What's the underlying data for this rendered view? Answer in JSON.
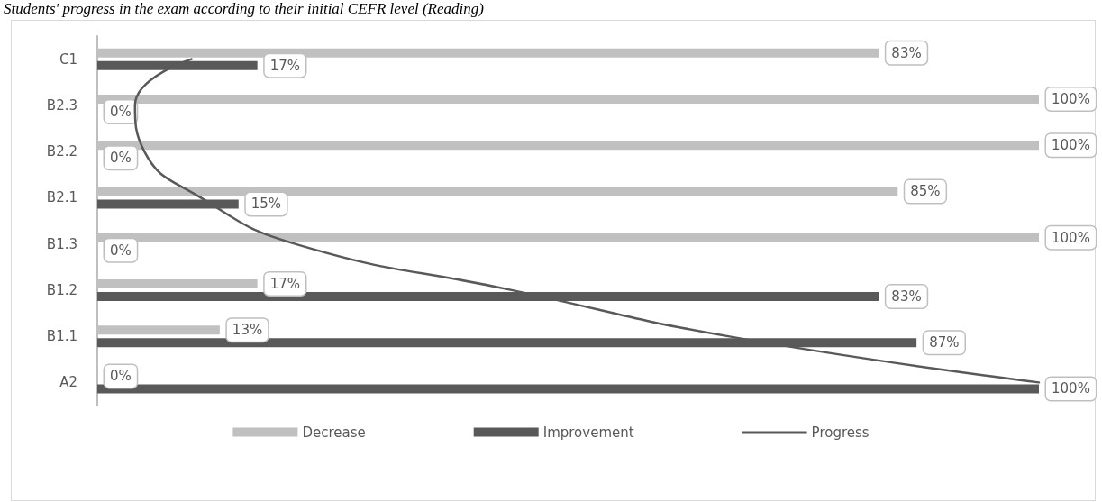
{
  "chart_data": {
    "type": "bar",
    "orientation": "horizontal",
    "title": "Students' progress in the exam according to their initial CEFR level (Reading)",
    "categories": [
      "C1",
      "B2.3",
      "B2.2",
      "B2.1",
      "B1.3",
      "B1.2",
      "B1.1",
      "A2"
    ],
    "series": [
      {
        "name": "Decrease",
        "color": "#c0c0c0",
        "values": [
          83,
          100,
          100,
          85,
          100,
          17,
          13,
          0
        ],
        "value_labels": [
          "83%",
          "100%",
          "100%",
          "85%",
          "100%",
          "17%",
          "13%",
          "0%"
        ]
      },
      {
        "name": "Improvement",
        "color": "#595959",
        "values": [
          17,
          0,
          0,
          15,
          0,
          83,
          87,
          100
        ],
        "value_labels": [
          "17%",
          "0%",
          "0%",
          "15%",
          "0%",
          "83%",
          "87%",
          "100%"
        ]
      },
      {
        "name": "Progress",
        "type": "line",
        "color": "#595959",
        "values": [
          10,
          4,
          5,
          11,
          21,
          44,
          67,
          100
        ]
      }
    ],
    "tick_labels": "y",
    "legend": "bottom",
    "grid": false,
    "marker": "none",
    "line_style": "solid"
  }
}
